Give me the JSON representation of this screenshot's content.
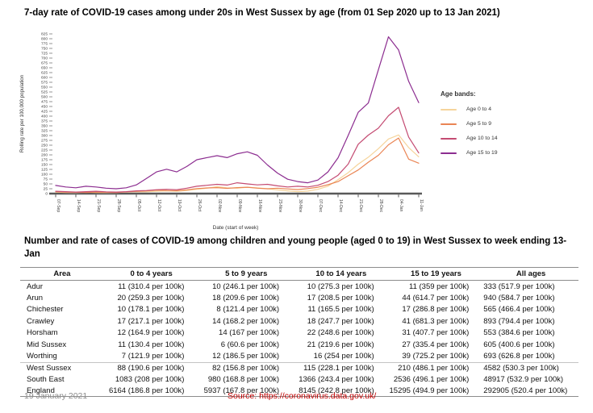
{
  "page": {
    "chart_title": "7-day rate of COVID-19 cases among under 20s in West Sussex by age (from 01 Sep 2020 up to 13 Jan 2021)",
    "footer_date": "19 January 2021",
    "source_text": "Source: https://coronavirus.data.gov.uk/"
  },
  "chart_data": {
    "type": "line",
    "title": "7-day rate of COVID-19 cases among under 20s in West Sussex by age (from 01 Sep 2020 up to 13 Jan 2021)",
    "xlabel": "Date (start of week)",
    "ylabel": "Rolling rate per 100,000 population",
    "ylim": [
      0,
      825
    ],
    "ytick_step": 25,
    "grid": false,
    "legend_title": "Age bands:",
    "legend_position": "right",
    "x_labels": [
      "07-Sep",
      "14-Sep",
      "21-Sep",
      "28-Sep",
      "05-Oct",
      "12-Oct",
      "19-Oct",
      "26-Oct",
      "02-Nov",
      "09-Nov",
      "16-Nov",
      "23-Nov",
      "30-Nov",
      "07-Dec",
      "14-Dec",
      "21-Dec",
      "28-Dec",
      "04-Jan",
      "11-Jan"
    ],
    "points_per_interval": 2,
    "series": [
      {
        "name": "Age 0 to 4",
        "color": "#f6d49b",
        "values": [
          8,
          6,
          5,
          7,
          6,
          5,
          6,
          8,
          10,
          9,
          12,
          14,
          12,
          16,
          22,
          28,
          36,
          30,
          28,
          33,
          30,
          25,
          19,
          14,
          10,
          13,
          22,
          38,
          72,
          108,
          152,
          188,
          232,
          282,
          303,
          238,
          190
        ]
      },
      {
        "name": "Age 5 to 9",
        "color": "#ea8554",
        "values": [
          10,
          8,
          7,
          6,
          8,
          7,
          6,
          9,
          12,
          14,
          18,
          16,
          15,
          19,
          26,
          29,
          31,
          27,
          31,
          33,
          28,
          25,
          28,
          24,
          21,
          26,
          33,
          46,
          62,
          92,
          122,
          162,
          198,
          252,
          287,
          178,
          157
        ]
      },
      {
        "name": "Age 10 to 14",
        "color": "#c44b72",
        "values": [
          12,
          10,
          8,
          10,
          12,
          9,
          8,
          10,
          14,
          16,
          20,
          22,
          20,
          28,
          38,
          43,
          48,
          44,
          56,
          50,
          45,
          48,
          40,
          34,
          38,
          34,
          43,
          62,
          95,
          152,
          255,
          302,
          338,
          402,
          446,
          292,
          210
        ]
      },
      {
        "name": "Age 15 to 19",
        "color": "#8c2d90",
        "values": [
          42,
          34,
          30,
          38,
          34,
          28,
          25,
          30,
          45,
          78,
          112,
          126,
          112,
          140,
          175,
          186,
          196,
          186,
          206,
          216,
          198,
          148,
          106,
          74,
          62,
          56,
          70,
          112,
          185,
          300,
          420,
          468,
          640,
          810,
          742,
          580,
          470
        ]
      }
    ]
  },
  "table": {
    "title": "Number and rate of cases of COVID-19 among children and young people (aged 0 to 19) in West Sussex to week ending 13-Jan",
    "columns": [
      "Area",
      "0 to 4 years",
      "5 to 9 years",
      "10 to 14 years",
      "15 to 19 years",
      "All ages"
    ],
    "summary_start_row": "West Sussex",
    "rows": [
      {
        "area": "Adur",
        "values": [
          "11 (310.4 per 100k)",
          "10 (246.1 per 100k)",
          "10 (275.3 per 100k)",
          "11 (359 per 100k)",
          "333 (517.9 per 100k)"
        ]
      },
      {
        "area": "Arun",
        "values": [
          "20 (259.3 per 100k)",
          "18 (209.6 per 100k)",
          "17 (208.5 per 100k)",
          "44 (614.7 per 100k)",
          "940 (584.7 per 100k)"
        ]
      },
      {
        "area": "Chichester",
        "values": [
          "10 (178.1 per 100k)",
          "8 (121.4 per 100k)",
          "11 (165.5 per 100k)",
          "17 (286.8 per 100k)",
          "565 (466.4 per 100k)"
        ]
      },
      {
        "area": "Crawley",
        "values": [
          "17 (217.1 per 100k)",
          "14 (168.2 per 100k)",
          "18 (247.7 per 100k)",
          "41 (681.3 per 100k)",
          "893 (794.4 per 100k)"
        ]
      },
      {
        "area": "Horsham",
        "values": [
          "12 (164.9 per 100k)",
          "14 (167 per 100k)",
          "22 (248.6 per 100k)",
          "31 (407.7 per 100k)",
          "553 (384.6 per 100k)"
        ]
      },
      {
        "area": "Mid Sussex",
        "values": [
          "11 (130.4 per 100k)",
          "6 (60.6 per 100k)",
          "21 (219.6 per 100k)",
          "27 (335.4 per 100k)",
          "605 (400.6 per 100k)"
        ]
      },
      {
        "area": "Worthing",
        "values": [
          "7 (121.9 per 100k)",
          "12 (186.5 per 100k)",
          "16 (254 per 100k)",
          "39 (725.2 per 100k)",
          "693 (626.8 per 100k)"
        ]
      },
      {
        "area": "West Sussex",
        "values": [
          "88 (190.6 per 100k)",
          "82 (156.8 per 100k)",
          "115 (228.1 per 100k)",
          "210 (486.1 per 100k)",
          "4582 (530.3 per 100k)"
        ]
      },
      {
        "area": "South East",
        "values": [
          "1083 (208 per 100k)",
          "980 (168.8 per 100k)",
          "1366 (243.4 per 100k)",
          "2536 (496.1 per 100k)",
          "48917 (532.9 per 100k)"
        ]
      },
      {
        "area": "England",
        "values": [
          "6164 (186.8 per 100k)",
          "5937 (167.8 per 100k)",
          "8145 (242.8 per 100k)",
          "15295 (494.9 per 100k)",
          "292905 (520.4 per 100k)"
        ]
      }
    ]
  }
}
